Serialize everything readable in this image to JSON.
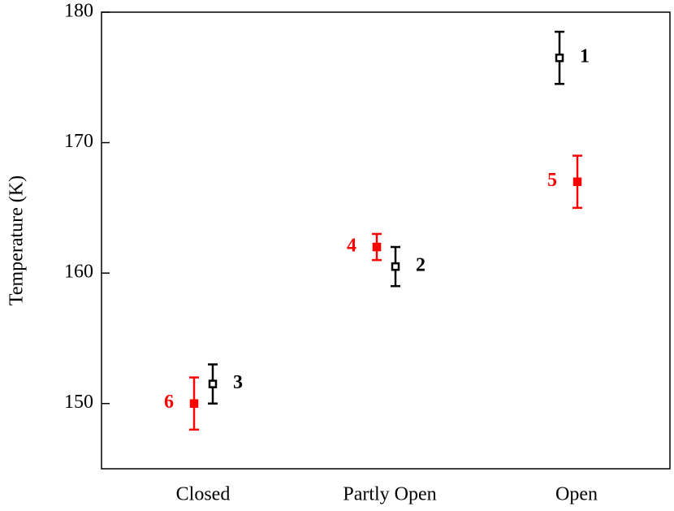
{
  "chart_data": {
    "type": "errorbar",
    "y_label": "Temperature (K)",
    "categories": [
      "Closed",
      "Partly Open",
      "Open"
    ],
    "series": [
      {
        "color": "#000000",
        "values": [
          151.5,
          160.5,
          176.5
        ],
        "errors": [
          1.5,
          1.5,
          2
        ],
        "point_labels": [
          "3",
          "2",
          "1"
        ]
      },
      {
        "color": "#ff0000",
        "values": [
          150,
          162,
          167
        ],
        "errors": [
          2,
          1,
          2
        ],
        "point_labels": [
          "6",
          "4",
          "5"
        ]
      }
    ],
    "ylim": [
      145,
      180
    ],
    "yticks": [
      150,
      160,
      170,
      180
    ]
  }
}
